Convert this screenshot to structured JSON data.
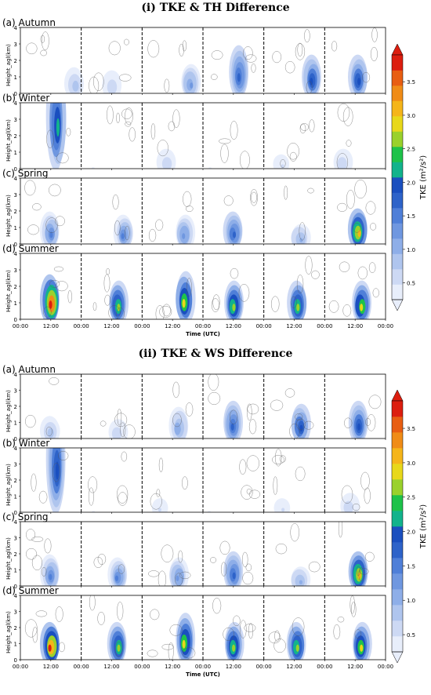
{
  "figure": {
    "title_i": "(i) TKE & TH Difference",
    "title_ii": "(ii) TKE & WS Difference"
  },
  "chart_data": [
    {
      "type": "heatmap",
      "title": "(i) TKE & TH Difference",
      "xlabel": "Time (UTC)",
      "ylabel": "Height_agl(km)",
      "xticks": [
        "00:00",
        "12:00",
        "00:00",
        "12:00",
        "00:00",
        "12:00",
        "00:00",
        "12:00",
        "00:00",
        "12:00",
        "00:00",
        "12:00",
        "00:00"
      ],
      "yticks": [
        "0",
        "1",
        "2",
        "3",
        "4"
      ],
      "ylim": [
        0,
        4
      ],
      "days_per_panel": 6,
      "panels": [
        {
          "label": "(a) Autumn",
          "tke_peaks": [
            [
              0.9,
              0.6,
              0.9
            ],
            [
              0.5,
              0.5,
              0.6
            ],
            [
              0.8,
              0.7,
              1.2
            ],
            [
              0.6,
              1.3,
              1.8
            ],
            [
              0.8,
              1.0,
              2.0
            ],
            [
              0.55,
              1.0,
              2.0
            ]
          ]
        },
        {
          "label": "(b) Winter",
          "tke_peaks": [
            [
              0.6,
              3.2,
              2.2
            ],
            [
              0.2,
              0.1,
              0.3
            ],
            [
              0.4,
              0.4,
              0.6
            ],
            [
              0.1,
              0.1,
              0.3
            ],
            [
              0.3,
              0.3,
              0.5
            ],
            [
              0.3,
              0.4,
              0.6
            ]
          ]
        },
        {
          "label": "(c) Spring",
          "tke_peaks": [
            [
              0.5,
              0.8,
              1.5
            ],
            [
              0.7,
              0.7,
              1.4
            ],
            [
              0.7,
              0.7,
              1.3
            ],
            [
              0.5,
              0.8,
              1.8
            ],
            [
              0.6,
              0.4,
              1.0
            ],
            [
              0.55,
              0.9,
              3.0
            ]
          ]
        },
        {
          "label": "(d) Summer",
          "tke_peaks": [
            [
              0.5,
              1.2,
              3.9
            ],
            [
              0.6,
              1.0,
              2.6
            ],
            [
              0.7,
              1.3,
              2.8
            ],
            [
              0.5,
              1.0,
              2.7
            ],
            [
              0.55,
              1.0,
              2.6
            ],
            [
              0.6,
              1.0,
              2.8
            ]
          ]
        }
      ],
      "colorbar": {
        "label": "TKE (m²/s²)",
        "ticks": [
          0.5,
          1.0,
          1.5,
          2.0,
          2.5,
          3.0,
          3.5
        ],
        "range": [
          0.25,
          3.9
        ],
        "colors": [
          "#e8eefb",
          "#cdd9f4",
          "#afc5ee",
          "#8eaee8",
          "#6f97e0",
          "#4f7fd8",
          "#2e63c9",
          "#1a4fbf",
          "#12b38c",
          "#1ec24a",
          "#9ad12c",
          "#e8d81a",
          "#f5b51a",
          "#f08c17",
          "#e85e12",
          "#dc1e0f"
        ]
      }
    },
    {
      "type": "heatmap",
      "title": "(ii) TKE & WS Difference",
      "xlabel": "Time (UTC)",
      "ylabel": "Height_agl(km)",
      "xticks": [
        "00:00",
        "12:00",
        "00:00",
        "12:00",
        "00:00",
        "12:00",
        "00:00",
        "12:00",
        "00:00",
        "12:00",
        "00:00",
        "12:00",
        "00:00"
      ],
      "yticks": [
        "0",
        "1",
        "2",
        "3",
        "4"
      ],
      "ylim": [
        0,
        4
      ],
      "days_per_panel": 6,
      "panels": [
        {
          "label": "(a) Autumn",
          "tke_peaks": [
            [
              0.5,
              0.5,
              0.9
            ],
            [
              0.6,
              0.4,
              0.7
            ],
            [
              0.6,
              0.8,
              1.1
            ],
            [
              0.5,
              1.0,
              1.7
            ],
            [
              0.6,
              0.9,
              2.0
            ],
            [
              0.55,
              1.0,
              2.0
            ]
          ]
        },
        {
          "label": "(b) Winter",
          "tke_peaks": [
            [
              0.6,
              3.3,
              2.0
            ],
            [
              0.2,
              0.1,
              0.3
            ],
            [
              0.3,
              0.3,
              0.5
            ],
            [
              0.1,
              0.1,
              0.3
            ],
            [
              0.3,
              0.3,
              0.5
            ],
            [
              0.4,
              0.4,
              0.6
            ]
          ]
        },
        {
          "label": "(c) Spring",
          "tke_peaks": [
            [
              0.5,
              0.8,
              1.5
            ],
            [
              0.6,
              0.7,
              1.4
            ],
            [
              0.6,
              0.7,
              1.3
            ],
            [
              0.5,
              0.9,
              1.8
            ],
            [
              0.6,
              0.4,
              1.0
            ],
            [
              0.55,
              0.9,
              3.0
            ]
          ]
        },
        {
          "label": "(d) Summer",
          "tke_peaks": [
            [
              0.5,
              1.0,
              3.8
            ],
            [
              0.6,
              1.0,
              2.6
            ],
            [
              0.7,
              1.3,
              2.8
            ],
            [
              0.5,
              1.0,
              2.7
            ],
            [
              0.55,
              1.0,
              2.6
            ],
            [
              0.6,
              1.0,
              2.8
            ]
          ]
        }
      ],
      "colorbar": {
        "label": "TKE (m²/s²)",
        "ticks": [
          0.5,
          1.0,
          1.5,
          2.0,
          2.5,
          3.0,
          3.5
        ],
        "range": [
          0.25,
          3.9
        ],
        "colors": [
          "#e8eefb",
          "#cdd9f4",
          "#afc5ee",
          "#8eaee8",
          "#6f97e0",
          "#4f7fd8",
          "#2e63c9",
          "#1a4fbf",
          "#12b38c",
          "#1ec24a",
          "#9ad12c",
          "#e8d81a",
          "#f5b51a",
          "#f08c17",
          "#e85e12",
          "#dc1e0f"
        ]
      }
    }
  ]
}
